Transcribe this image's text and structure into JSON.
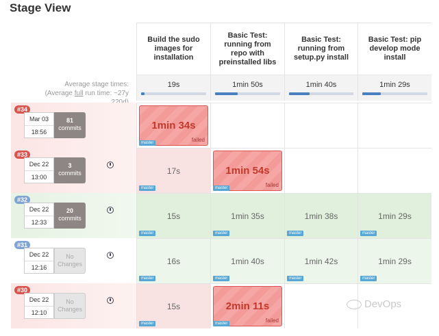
{
  "page_title": "Stage View",
  "average": {
    "label_line1": "Average stage times:",
    "label_pre": "(Average ",
    "label_link": "full",
    "label_post": " run time: ~27y",
    "label_line3": "220d)"
  },
  "stages": [
    {
      "name": "Build the sudo images for installation",
      "avg": "19s",
      "fill_percent": 5
    },
    {
      "name": "Basic Test: running from repo with preinstalled libs",
      "avg": "1min 50s",
      "fill_percent": 35
    },
    {
      "name": "Basic Test: running from setup.py install",
      "avg": "1min 40s",
      "fill_percent": 32
    },
    {
      "name": "Basic Test: pip develop mode install",
      "avg": "1min 29s",
      "fill_percent": 28
    }
  ],
  "builds": [
    {
      "number": "#34",
      "date": "Mar 03",
      "time": "18:56",
      "commits_count": "81",
      "commits_label": "commits",
      "status": "red",
      "cells": [
        {
          "value": "1min 34s",
          "state": "failed",
          "tag": "master",
          "failed_label": "failed"
        },
        {
          "value": "",
          "state": "empty"
        },
        {
          "value": "",
          "state": "empty"
        },
        {
          "value": "",
          "state": "empty"
        }
      ]
    },
    {
      "number": "#33",
      "date": "Dec 22",
      "time": "13:00",
      "commits_count": "3",
      "commits_label": "commits",
      "status": "red",
      "cells": [
        {
          "value": "17s",
          "state": "red-light",
          "tag": "master"
        },
        {
          "value": "1min 54s",
          "state": "failed",
          "tag": "master",
          "failed_label": "failed"
        },
        {
          "value": "",
          "state": "empty"
        },
        {
          "value": "",
          "state": "empty"
        }
      ]
    },
    {
      "number": "#32",
      "date": "Dec 22",
      "time": "12:33",
      "commits_count": "20",
      "commits_label": "commits",
      "status": "green",
      "cells": [
        {
          "value": "15s",
          "state": "green-light",
          "tag": "master"
        },
        {
          "value": "1min 35s",
          "state": "green-light",
          "tag": "master"
        },
        {
          "value": "1min 38s",
          "state": "green-light",
          "tag": "master"
        },
        {
          "value": "1min 29s",
          "state": "green-light",
          "tag": "master"
        }
      ]
    },
    {
      "number": "#31",
      "date": "Dec 22",
      "time": "12:16",
      "commits_count": "No",
      "commits_label": "Changes",
      "status": "white",
      "cells": [
        {
          "value": "16s",
          "state": "green-lighter",
          "tag": "master"
        },
        {
          "value": "1min 40s",
          "state": "green-lighter",
          "tag": "master"
        },
        {
          "value": "1min 42s",
          "state": "green-lighter",
          "tag": "master"
        },
        {
          "value": "1min 29s",
          "state": "green-lighter",
          "tag": "master"
        }
      ]
    },
    {
      "number": "#30",
      "date": "Dec 22",
      "time": "12:10",
      "commits_count": "No",
      "commits_label": "Changes",
      "status": "red",
      "cells": [
        {
          "value": "15s",
          "state": "red-light",
          "tag": "master"
        },
        {
          "value": "2min 11s",
          "state": "failed",
          "tag": "master",
          "failed_label": "failed"
        },
        {
          "value": "",
          "state": "empty"
        },
        {
          "value": "",
          "state": "empty"
        }
      ]
    }
  ],
  "watermark": "DevOps"
}
